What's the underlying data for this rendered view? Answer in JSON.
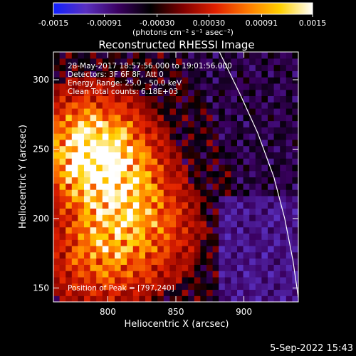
{
  "chart_data": {
    "type": "heatmap",
    "title": "Reconstructed RHESSI Image",
    "xlabel": "Heliocentric X (arcsec)",
    "ylabel": "Heliocentric Y (arcsec)",
    "xlim": [
      760,
      940
    ],
    "ylim": [
      140,
      320
    ],
    "x_ticks": [
      800,
      850,
      900
    ],
    "y_ticks": [
      150,
      200,
      250,
      300
    ],
    "colorbar": {
      "min": -0.0015,
      "max": 0.0015,
      "ticks": [
        "-0.0015",
        "-0.00091",
        "-0.00030",
        "0.00030",
        "0.00091",
        "0.0015"
      ],
      "unit_label": "(photons cm⁻² s⁻¹ asec⁻²)",
      "colors": [
        "#1020ff",
        "#5a30c0",
        "#3a0060",
        "#000000",
        "#800000",
        "#e02000",
        "#ff7a00",
        "#ffd000",
        "#ffffff"
      ]
    },
    "annotations": {
      "time_range": "28-May-2017 18:57:56.000 to 19:01:56.000",
      "detectors": "Detectors: 3F 6F 8F, Att 0",
      "energy_range": "Energy Range: 25.0 - 50.0 keV",
      "clean_counts": "Clean    Total counts: 6.18E+03",
      "peak": "Position of Peak = [797,240]"
    },
    "peak_position": [
      797,
      240
    ],
    "sources": [
      {
        "x": 797,
        "y": 240,
        "amplitude": 1.0
      },
      {
        "x": 782,
        "y": 255,
        "amplitude": 0.7
      },
      {
        "x": 810,
        "y": 215,
        "amplitude": 0.55
      },
      {
        "x": 795,
        "y": 175,
        "amplitude": 0.6
      },
      {
        "x": 830,
        "y": 190,
        "amplitude": 0.4
      }
    ],
    "limb_curve": [
      [
        882,
        320
      ],
      [
        897,
        290
      ],
      [
        910,
        262
      ],
      [
        922,
        230
      ],
      [
        930,
        200
      ],
      [
        936,
        170
      ],
      [
        940,
        143
      ]
    ]
  },
  "footer": {
    "date_stamp": "5-Sep-2022 15:43"
  }
}
